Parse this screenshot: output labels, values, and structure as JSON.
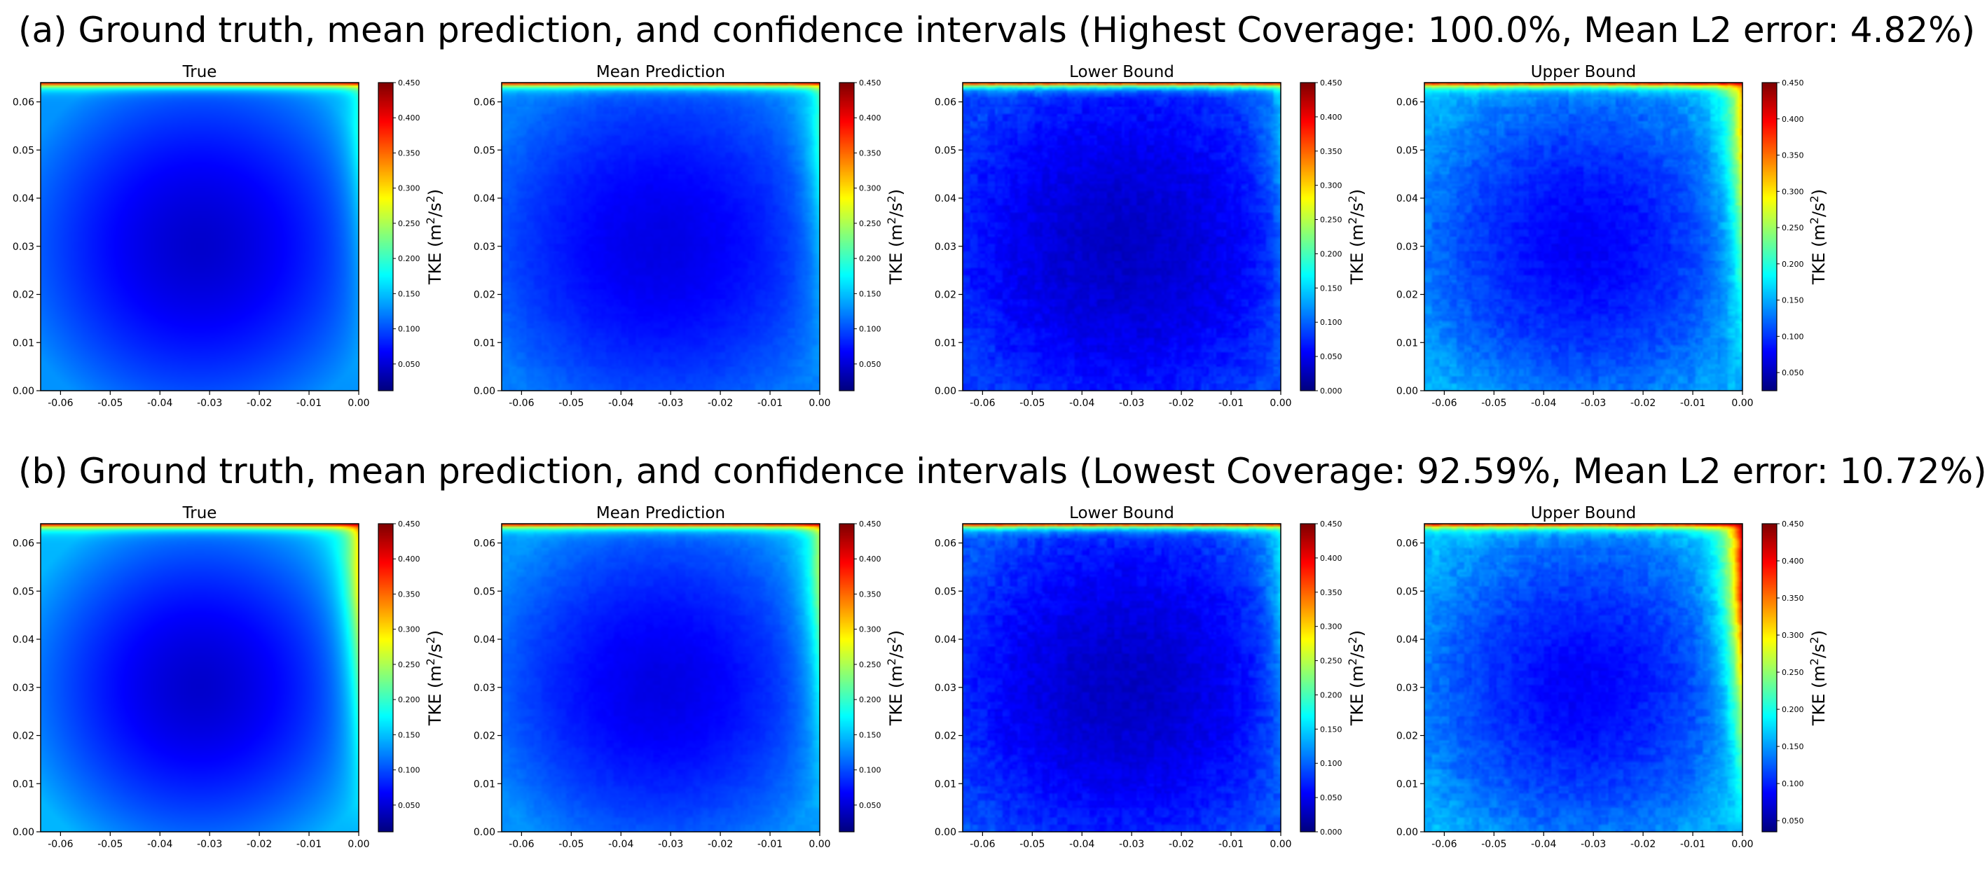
{
  "chart_data": {
    "type": "heatmap",
    "colormap": "jet",
    "domain": {
      "xlim": [
        -0.064,
        0.0
      ],
      "ylim": [
        0.0,
        0.064
      ]
    },
    "x_ticks": [
      "-0.06",
      "-0.05",
      "-0.04",
      "-0.03",
      "-0.02",
      "-0.01",
      "0.00"
    ],
    "x_tick_values": [
      -0.06,
      -0.05,
      -0.04,
      -0.03,
      -0.02,
      -0.01,
      0.0
    ],
    "y_ticks": [
      "0.00",
      "0.01",
      "0.02",
      "0.03",
      "0.04",
      "0.05",
      "0.06"
    ],
    "y_tick_values": [
      0.0,
      0.01,
      0.02,
      0.03,
      0.04,
      0.05,
      0.06
    ],
    "colorbar_label": "TKE (m²/s²)",
    "colorbar_label_parts": {
      "base": "TKE (m",
      "sup": "2",
      "mid": "/s",
      "sup2": "2",
      "end": ")"
    },
    "rows": [
      {
        "id": "a",
        "title": "(a) Ground truth, mean prediction, and confidence intervals (Highest Coverage: 100.0%, Mean L2 error: 4.82%)",
        "panels": [
          {
            "title": "True",
            "vmin": 0.012,
            "vmax": 0.45,
            "cbar_ticks": [
              "0.050",
              "0.100",
              "0.150",
              "0.200",
              "0.250",
              "0.300",
              "0.350",
              "0.400",
              "0.450"
            ],
            "cbar_tick_values": [
              0.05,
              0.1,
              0.15,
              0.2,
              0.25,
              0.3,
              0.35,
              0.4,
              0.45
            ],
            "field": {
              "core": 0.045,
              "wall": 0.13,
              "right_wall": 0.19,
              "top_lid": 0.45,
              "noise": 0.0
            }
          },
          {
            "title": "Mean Prediction",
            "vmin": 0.012,
            "vmax": 0.45,
            "cbar_ticks": [
              "0.050",
              "0.100",
              "0.150",
              "0.200",
              "0.250",
              "0.300",
              "0.350",
              "0.400",
              "0.450"
            ],
            "cbar_tick_values": [
              0.05,
              0.1,
              0.15,
              0.2,
              0.25,
              0.3,
              0.35,
              0.4,
              0.45
            ],
            "field": {
              "core": 0.055,
              "wall": 0.12,
              "right_wall": 0.2,
              "top_lid": 0.45,
              "noise": 0.004
            }
          },
          {
            "title": "Lower Bound",
            "vmin": 0.0,
            "vmax": 0.45,
            "cbar_ticks": [
              "0.000",
              "0.050",
              "0.100",
              "0.150",
              "0.200",
              "0.250",
              "0.300",
              "0.350",
              "0.400",
              "0.450"
            ],
            "cbar_tick_values": [
              0.0,
              0.05,
              0.1,
              0.15,
              0.2,
              0.25,
              0.3,
              0.35,
              0.4,
              0.45
            ],
            "field": {
              "core": 0.03,
              "wall": 0.085,
              "right_wall": 0.14,
              "top_lid": 0.45,
              "noise": 0.012
            }
          },
          {
            "title": "Upper Bound",
            "vmin": 0.025,
            "vmax": 0.45,
            "cbar_ticks": [
              "0.050",
              "0.100",
              "0.150",
              "0.200",
              "0.250",
              "0.300",
              "0.350",
              "0.400",
              "0.450"
            ],
            "cbar_tick_values": [
              0.05,
              0.1,
              0.15,
              0.2,
              0.25,
              0.3,
              0.35,
              0.4,
              0.45
            ],
            "field": {
              "core": 0.075,
              "wall": 0.15,
              "right_wall": 0.32,
              "top_lid": 0.45,
              "noise": 0.012
            }
          }
        ]
      },
      {
        "id": "b",
        "title": "(b) Ground truth, mean prediction, and confidence intervals (Lowest Coverage: 92.59%, Mean L2 error: 10.72%)",
        "panels": [
          {
            "title": "True",
            "vmin": 0.012,
            "vmax": 0.45,
            "cbar_ticks": [
              "0.050",
              "0.100",
              "0.150",
              "0.200",
              "0.250",
              "0.300",
              "0.350",
              "0.400",
              "0.450"
            ],
            "cbar_tick_values": [
              0.05,
              0.1,
              0.15,
              0.2,
              0.25,
              0.3,
              0.35,
              0.4,
              0.45
            ],
            "field": {
              "core": 0.045,
              "wall": 0.145,
              "right_wall": 0.3,
              "top_lid": 0.45,
              "noise": 0.0
            }
          },
          {
            "title": "Mean Prediction",
            "vmin": 0.012,
            "vmax": 0.45,
            "cbar_ticks": [
              "0.050",
              "0.100",
              "0.150",
              "0.200",
              "0.250",
              "0.300",
              "0.350",
              "0.400",
              "0.450"
            ],
            "cbar_tick_values": [
              0.05,
              0.1,
              0.15,
              0.2,
              0.25,
              0.3,
              0.35,
              0.4,
              0.45
            ],
            "field": {
              "core": 0.055,
              "wall": 0.13,
              "right_wall": 0.25,
              "top_lid": 0.45,
              "noise": 0.004
            }
          },
          {
            "title": "Lower Bound",
            "vmin": 0.0,
            "vmax": 0.45,
            "cbar_ticks": [
              "0.000",
              "0.050",
              "0.100",
              "0.150",
              "0.200",
              "0.250",
              "0.300",
              "0.350",
              "0.400",
              "0.450"
            ],
            "cbar_tick_values": [
              0.0,
              0.05,
              0.1,
              0.15,
              0.2,
              0.25,
              0.3,
              0.35,
              0.4,
              0.45
            ],
            "field": {
              "core": 0.03,
              "wall": 0.09,
              "right_wall": 0.16,
              "top_lid": 0.45,
              "noise": 0.012
            }
          },
          {
            "title": "Upper Bound",
            "vmin": 0.035,
            "vmax": 0.45,
            "cbar_ticks": [
              "0.050",
              "0.100",
              "0.150",
              "0.200",
              "0.250",
              "0.300",
              "0.350",
              "0.400",
              "0.450"
            ],
            "cbar_tick_values": [
              0.05,
              0.1,
              0.15,
              0.2,
              0.25,
              0.3,
              0.35,
              0.4,
              0.45
            ],
            "field": {
              "core": 0.085,
              "wall": 0.16,
              "right_wall": 0.42,
              "top_lid": 0.45,
              "noise": 0.012
            }
          }
        ]
      }
    ]
  }
}
